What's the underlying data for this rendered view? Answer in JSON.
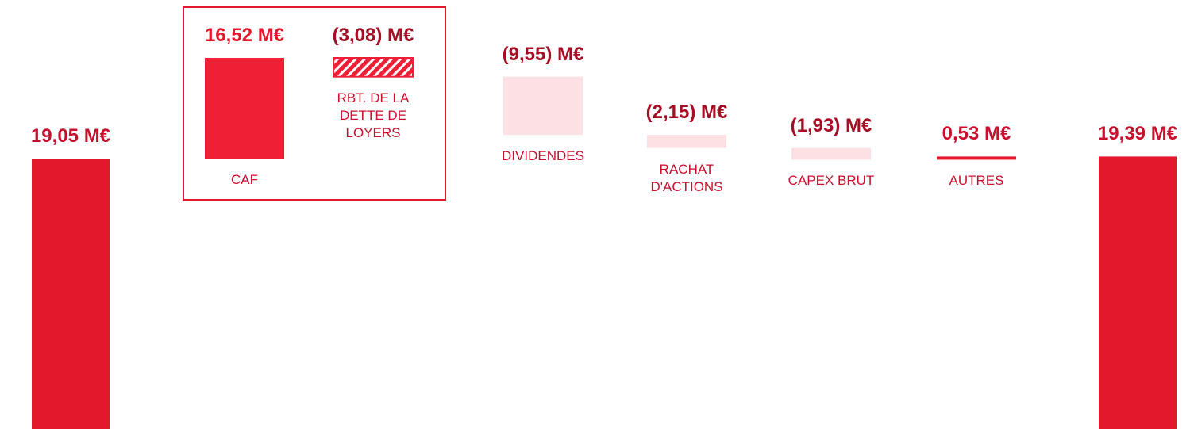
{
  "chart_data": {
    "type": "waterfall",
    "categories": [
      null,
      "CAF",
      "RBT. DE LA DETTE DE LOYERS",
      "DIVIDENDES",
      "RACHAT D'ACTIONS",
      "CAPEX BRUT",
      "AUTRES",
      null
    ],
    "values": [
      19.05,
      16.52,
      -3.08,
      -9.55,
      -2.15,
      -1.93,
      0.53,
      19.39
    ],
    "value_labels": [
      "19,05 M€",
      "16,52 M€",
      "(3,08) M€",
      "(9,55) M€",
      "(2,15) M€",
      "(1,93) M€",
      "0,53 M€",
      "19,39 M€"
    ],
    "totals": [
      true,
      false,
      false,
      false,
      false,
      false,
      false,
      true
    ],
    "colors": [
      "#e3182d",
      "#ef1f36",
      "#ef1f36",
      "#fde0e4",
      "#fde0e4",
      "#fde0e4",
      "#e3182d",
      "#e3182d"
    ],
    "hatched": [
      false,
      false,
      true,
      false,
      false,
      false,
      false,
      false
    ],
    "label_colors": [
      "#c8102e",
      "#e3182d",
      "#a50f25",
      "#a50f25",
      "#a50f25",
      "#a50f25",
      "#c8102e",
      "#c8102e"
    ],
    "category_color": "#c8102e"
  }
}
